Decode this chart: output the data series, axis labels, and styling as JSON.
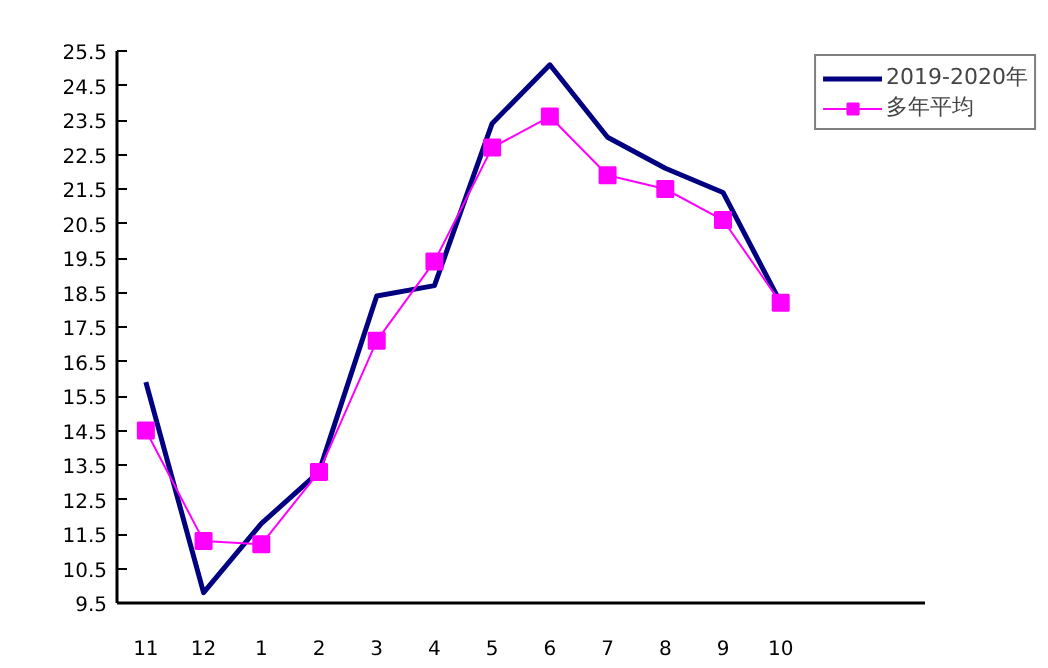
{
  "chart_data": {
    "type": "line",
    "categories": [
      "11",
      "12",
      "1",
      "2",
      "3",
      "4",
      "5",
      "6",
      "7",
      "8",
      "9",
      "10",
      null,
      null
    ],
    "series": [
      {
        "name": "2019-2020年",
        "color": "#000080",
        "marker": "none",
        "values": [
          15.9,
          9.8,
          11.8,
          13.3,
          18.4,
          18.7,
          23.4,
          25.1,
          23.0,
          22.1,
          21.4,
          18.2,
          null,
          null
        ]
      },
      {
        "name": "多年平均",
        "color": "#ff00ff",
        "marker": "square",
        "values": [
          14.5,
          11.3,
          11.2,
          13.3,
          17.1,
          19.4,
          22.7,
          23.6,
          21.9,
          21.5,
          20.6,
          18.2,
          null,
          null
        ]
      }
    ],
    "ylim": [
      9.5,
      25.5
    ],
    "yticks": [
      9.5,
      10.5,
      11.5,
      12.5,
      13.5,
      14.5,
      15.5,
      16.5,
      17.5,
      18.5,
      19.5,
      20.5,
      21.5,
      22.5,
      23.5,
      24.5,
      25.5
    ],
    "grid": false,
    "legend": "top right"
  }
}
